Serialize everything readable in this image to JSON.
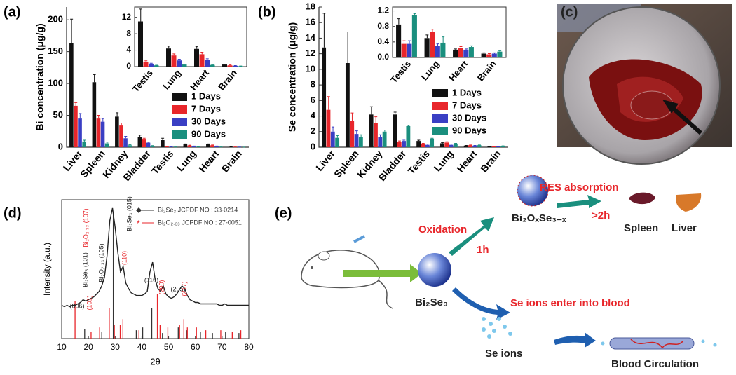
{
  "panel_labels": [
    "(a)",
    "(b)",
    "(c)",
    "(d)",
    "(e)"
  ],
  "chart_data": [
    {
      "type": "bar",
      "ylabel": "Bi concentration (μg/g)",
      "categories": [
        "Liver",
        "Spleen",
        "Kidney",
        "Bladder",
        "Testis",
        "Lung",
        "Heart",
        "Brain"
      ],
      "series": [
        {
          "name": "1 Days",
          "color": "#111111",
          "values": [
            163,
            102,
            48,
            16,
            11,
            4.5,
            4.5,
            0.5
          ],
          "errors": [
            38,
            12,
            6,
            3,
            3,
            0.6,
            0.6,
            0.1
          ]
        },
        {
          "name": "7 Days",
          "color": "#e8262b",
          "values": [
            65,
            45,
            34,
            12,
            1.3,
            2.8,
            3,
            0.3
          ],
          "errors": [
            5,
            5,
            4,
            2,
            0.2,
            0.4,
            0.4,
            0.1
          ]
        },
        {
          "name": "30 Days",
          "color": "#3a3fc4",
          "values": [
            45,
            40,
            14,
            7,
            0.6,
            1.5,
            1.5,
            0.2
          ],
          "errors": [
            8,
            5,
            3,
            1,
            0.1,
            0.3,
            0.3,
            0.05
          ]
        },
        {
          "name": "90 Days",
          "color": "#1a8f7e",
          "values": [
            9,
            6,
            3,
            2,
            0.3,
            0.5,
            0.3,
            0.1
          ],
          "errors": [
            2,
            2,
            1,
            0.5,
            0.05,
            0.1,
            0.1,
            0.05
          ]
        }
      ],
      "ylim": [
        0,
        220
      ],
      "yticks": [
        0,
        50,
        100,
        150,
        200
      ],
      "legend": "lower right"
    },
    {
      "type": "bar",
      "categories": [
        "Testis",
        "Lung",
        "Heart",
        "Brain"
      ],
      "series": [
        {
          "color": "#111111",
          "values": [
            11,
            4.4,
            4.3,
            0.5
          ],
          "errors": [
            3,
            0.6,
            0.6,
            0.1
          ]
        },
        {
          "color": "#e8262b",
          "values": [
            1.2,
            2.7,
            3,
            0.3
          ],
          "errors": [
            0.2,
            0.4,
            0.5,
            0.1
          ]
        },
        {
          "color": "#3a3fc4",
          "values": [
            0.7,
            1.5,
            1.6,
            0.2
          ],
          "errors": [
            0.1,
            0.3,
            0.3,
            0.05
          ]
        },
        {
          "color": "#1a8f7e",
          "values": [
            0.3,
            0.5,
            0.4,
            0.1
          ],
          "errors": [
            0.05,
            0.1,
            0.1,
            0.05
          ]
        }
      ],
      "ylim": [
        0,
        14.5
      ],
      "yticks": [
        0,
        4,
        8,
        12
      ]
    },
    {
      "type": "bar",
      "ylabel": "Se concentration (μg/g)",
      "categories": [
        "Liver",
        "Spleen",
        "Kidney",
        "Bladder",
        "Testis",
        "Lung",
        "Heart",
        "Brain"
      ],
      "series": [
        {
          "name": "1 Days",
          "color": "#111111",
          "values": [
            12.8,
            10.8,
            4.2,
            4.2,
            0.8,
            0.5,
            0.2,
            0.1
          ],
          "errors": [
            4.4,
            4,
            1,
            0.3,
            0.1,
            0.1,
            0.03,
            0.02
          ]
        },
        {
          "name": "7 Days",
          "color": "#e8262b",
          "values": [
            4.8,
            3.4,
            3.1,
            0.7,
            0.4,
            0.6,
            0.25,
            0.1
          ],
          "errors": [
            1.7,
            1,
            0.8,
            0.1,
            0.1,
            0.1,
            0.03,
            0.02
          ]
        },
        {
          "name": "30 Days",
          "color": "#3a3fc4",
          "values": [
            2,
            1.7,
            1.3,
            0.8,
            0.3,
            0.3,
            0.2,
            0.1
          ],
          "errors": [
            0.6,
            0.4,
            0.3,
            0.1,
            0.1,
            0.1,
            0.03,
            0.02
          ]
        },
        {
          "name": "90 Days",
          "color": "#1a8f7e",
          "values": [
            1.2,
            1.3,
            2,
            2.7,
            1.1,
            0.4,
            0.25,
            0.15
          ],
          "errors": [
            0.3,
            0.3,
            0.2,
            0.1,
            0.05,
            0.1,
            0.03,
            0.02
          ]
        }
      ],
      "ylim": [
        0,
        18
      ],
      "yticks": [
        0,
        2,
        4,
        6,
        8,
        10,
        12,
        14,
        16,
        18
      ],
      "legend": "right"
    },
    {
      "type": "bar",
      "categories": [
        "Testis",
        "Lung",
        "Heart",
        "Brain"
      ],
      "series": [
        {
          "color": "#111111",
          "values": [
            0.85,
            0.5,
            0.2,
            0.1
          ],
          "errors": [
            0.15,
            0.08,
            0.02,
            0.02
          ]
        },
        {
          "color": "#e8262b",
          "values": [
            0.35,
            0.65,
            0.25,
            0.08
          ],
          "errors": [
            0.08,
            0.08,
            0.03,
            0.02
          ]
        },
        {
          "color": "#3a3fc4",
          "values": [
            0.35,
            0.3,
            0.2,
            0.1
          ],
          "errors": [
            0.08,
            0.05,
            0.02,
            0.02
          ]
        },
        {
          "color": "#1a8f7e",
          "values": [
            1.1,
            0.38,
            0.27,
            0.15
          ],
          "errors": [
            0.03,
            0.15,
            0.03,
            0.02
          ]
        }
      ],
      "ylim": [
        0,
        1.3
      ],
      "yticks": [
        {
          "value": 0,
          "label": "0.0"
        },
        0.4,
        0.8,
        1.2
      ]
    },
    {
      "type": "line",
      "xlabel": "2θ",
      "ylabel": "Intensity (a.u.)",
      "x": [
        10,
        11,
        12,
        13,
        14,
        15,
        16,
        17,
        18,
        19,
        20,
        21,
        22,
        23,
        24,
        25,
        26,
        27,
        28,
        29,
        30,
        31,
        32,
        33,
        34,
        35,
        36,
        37,
        38,
        39,
        40,
        41,
        42,
        43,
        44,
        45,
        46,
        47,
        48,
        49,
        50,
        51,
        52,
        53,
        54,
        55,
        56,
        57,
        58,
        59,
        60,
        61,
        62,
        63,
        64,
        65,
        66,
        67,
        68,
        69,
        70,
        71,
        72,
        73,
        74,
        75,
        76,
        77,
        78,
        79,
        80
      ],
      "series": [
        {
          "color": "#222222",
          "values": [
            24,
            23,
            24,
            23,
            24,
            24,
            25,
            26,
            28,
            27,
            28,
            29,
            30,
            32,
            34,
            38,
            44,
            60,
            85,
            94,
            80,
            62,
            48,
            52,
            40,
            36,
            33,
            32,
            31,
            31,
            31,
            32,
            34,
            48,
            55,
            42,
            36,
            34,
            38,
            32,
            30,
            29,
            30,
            32,
            35,
            38,
            36,
            31,
            28,
            27,
            26,
            26,
            25,
            25,
            25,
            25,
            25,
            25,
            25,
            24,
            24,
            25,
            24,
            24,
            24,
            24,
            24,
            24,
            24,
            24,
            24
          ]
        }
      ],
      "reference_patterns": [
        {
          "name": "Bi₂Se₃ JCPDF NO : 33-0214",
          "color": "#333333",
          "marker": "diamond",
          "x": [
            18.6,
            25,
            29.3,
            37.9,
            40.3,
            43.7,
            47.7,
            53.6,
            56.7,
            61.9,
            66.4,
            71.3,
            76.3
          ],
          "values": [
            7,
            5,
            90,
            6,
            8,
            22,
            4,
            8,
            6,
            5,
            4,
            5,
            4
          ]
        },
        {
          "name": "Bi₂O₂.₃₃ JCPDF NO : 27-0051",
          "color": "#e8262b",
          "marker": "asterisk",
          "x": [
            15,
            21,
            24.2,
            27.8,
            29.7,
            31.9,
            32.9,
            38.9,
            45.8,
            46.8,
            49.7,
            54.1,
            55.7,
            57,
            60.4,
            63.9,
            69.5,
            73.8,
            77
          ],
          "values": [
            27,
            5,
            8,
            22,
            10,
            10,
            14,
            6,
            32,
            10,
            8,
            10,
            14,
            8,
            8,
            6,
            6,
            5,
            6
          ]
        }
      ],
      "annotations": [
        {
          "text": "(006)",
          "color": "#222222"
        },
        {
          "text": "Bi₂Se₃ (101)",
          "color": "#222222"
        },
        {
          "text": "(101)",
          "color": "#e8262b"
        },
        {
          "text": "Bi₂O₂.₃₃ (105)",
          "color": "#222222"
        },
        {
          "text": "Bi₂O₂.₃₃ (107)",
          "color": "#e8262b"
        },
        {
          "text": "Bi₂Se₃ (015)",
          "color": "#222222"
        },
        {
          "text": "(110)",
          "color": "#e8262b"
        },
        {
          "text": "(110)",
          "color": "#222222"
        },
        {
          "text": "(200)",
          "color": "#e8262b"
        },
        {
          "text": "(205)",
          "color": "#222222"
        },
        {
          "text": "(217)",
          "color": "#e8262b"
        }
      ],
      "xlim": [
        10,
        80
      ],
      "xticks": [
        10,
        20,
        30,
        40,
        50,
        60,
        70,
        80
      ],
      "ylim": [
        0,
        100
      ],
      "legend": "upper right"
    }
  ],
  "diagram": {
    "res_absorption": "RES absorption",
    "time_2h": ">2h",
    "spleen": "Spleen",
    "liver": "Liver",
    "oxidation": "Oxidation",
    "time_1h": "1h",
    "oxide": "Bi₂OₓSe₃₋ₓ",
    "bi2se3": "Bi₂Se₃",
    "se_enter": "Se ions enter into blood",
    "se_ions": "Se ions",
    "blood": "Blood Circulation"
  }
}
